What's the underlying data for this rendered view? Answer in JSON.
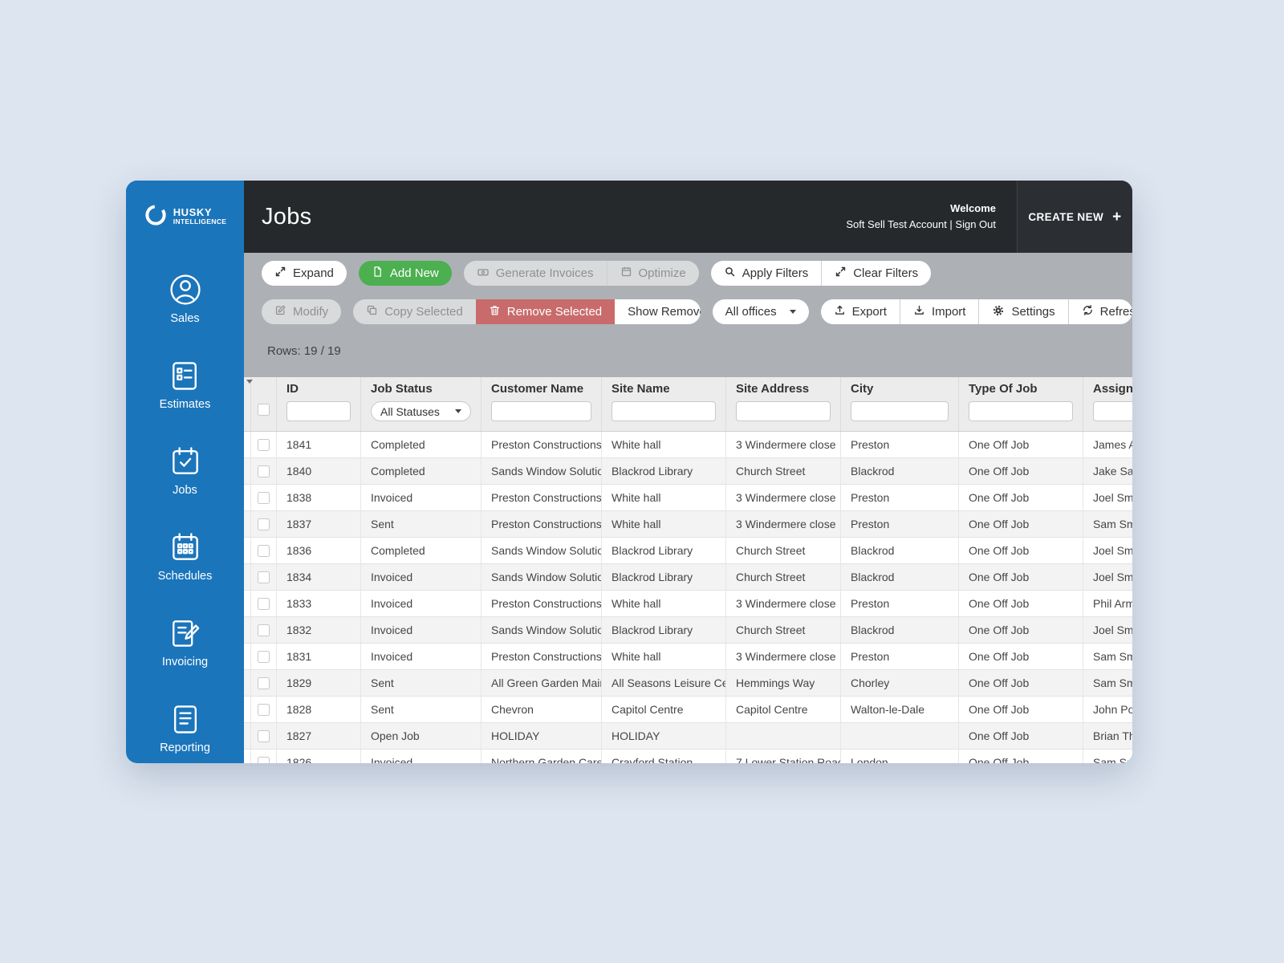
{
  "colors": {
    "sidebar_blue": "#1b75bb",
    "header_dark": "#26292c",
    "green": "#4caf50",
    "red": "#c96b6b",
    "toolbar_gray": "#adb1b6"
  },
  "header": {
    "logo_line1": "HUSKY",
    "logo_line2": "INTELLIGENCE",
    "title": "Jobs",
    "welcome": "Welcome",
    "account": "Soft Sell Test Account | Sign Out",
    "create_new_label": "CREATE NEW"
  },
  "sidebar": {
    "items": [
      {
        "label": "Sales"
      },
      {
        "label": "Estimates"
      },
      {
        "label": "Jobs"
      },
      {
        "label": "Schedules"
      },
      {
        "label": "Invoicing"
      },
      {
        "label": "Reporting"
      }
    ]
  },
  "toolbar": {
    "expand": "Expand",
    "add_new": "Add New",
    "generate_invoices": "Generate Invoices",
    "optimize": "Optimize",
    "apply_filters": "Apply Filters",
    "clear_filters": "Clear Filters",
    "modify": "Modify",
    "copy_selected": "Copy Selected",
    "remove_selected": "Remove Selected",
    "show_removed": "Show Removed",
    "all_offices": "All offices",
    "export": "Export",
    "import": "Import",
    "settings": "Settings",
    "refresh": "Refresh",
    "rows_info": "Rows: 19 / 19"
  },
  "table": {
    "columns": [
      "ID",
      "Job Status",
      "Customer Name",
      "Site Name",
      "Site Address",
      "City",
      "Type Of Job",
      "Assigned To"
    ],
    "status_filter_value": "All Statuses",
    "rows": [
      [
        "1841",
        "Completed",
        "Preston Constructions",
        "White hall",
        "3 Windermere close",
        "Preston",
        "One Off Job",
        "James Ash"
      ],
      [
        "1840",
        "Completed",
        "Sands Window Solutions",
        "Blackrod Library",
        "Church Street",
        "Blackrod",
        "One Off Job",
        "Jake Sand"
      ],
      [
        "1838",
        "Invoiced",
        "Preston Constructions",
        "White hall",
        "3 Windermere close",
        "Preston",
        "One Off Job",
        "Joel Smith"
      ],
      [
        "1837",
        "Sent",
        "Preston Constructions",
        "White hall",
        "3 Windermere close",
        "Preston",
        "One Off Job",
        "Sam Smith"
      ],
      [
        "1836",
        "Completed",
        "Sands Window Solutions",
        "Blackrod Library",
        "Church Street",
        "Blackrod",
        "One Off Job",
        "Joel Smith"
      ],
      [
        "1834",
        "Invoiced",
        "Sands Window Solutions",
        "Blackrod Library",
        "Church Street",
        "Blackrod",
        "One Off Job",
        "Joel Smith"
      ],
      [
        "1833",
        "Invoiced",
        "Preston Constructions",
        "White hall",
        "3 Windermere close",
        "Preston",
        "One Off Job",
        "Phil Armst"
      ],
      [
        "1832",
        "Invoiced",
        "Sands Window Solutions",
        "Blackrod Library",
        "Church Street",
        "Blackrod",
        "One Off Job",
        "Joel Smith"
      ],
      [
        "1831",
        "Invoiced",
        "Preston Constructions",
        "White hall",
        "3 Windermere close",
        "Preston",
        "One Off Job",
        "Sam Smith"
      ],
      [
        "1829",
        "Sent",
        "All Green Garden Maint...",
        "All Seasons Leisure Ce...",
        "Hemmings Way",
        "Chorley",
        "One Off Job",
        "Sam Smith"
      ],
      [
        "1828",
        "Sent",
        "Chevron",
        "Capitol Centre",
        "Capitol Centre",
        "Walton-le-Dale",
        "One Off Job",
        "John Potte"
      ],
      [
        "1827",
        "Open Job",
        "HOLIDAY",
        "HOLIDAY",
        "",
        "",
        "One Off Job",
        "Brian Thor"
      ],
      [
        "1826",
        "Invoiced",
        "Northern Garden Care",
        "Crayford Station",
        "7 Lower Station Road",
        "London",
        "One Off Job",
        "Sam Smit"
      ]
    ]
  }
}
